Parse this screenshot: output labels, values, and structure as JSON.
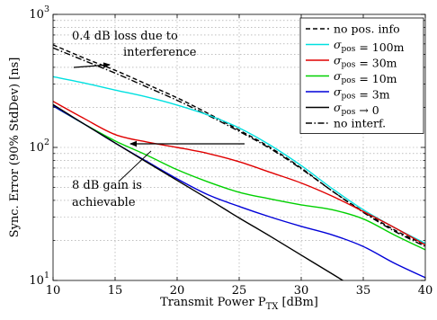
{
  "chart_data": {
    "type": "line",
    "title": "",
    "xlabel": {
      "prefix": "Transmit Power P",
      "sub": "TX",
      "suffix": " [dBm]"
    },
    "ylabel": "Sync. Error (90% StdDev) [ns]",
    "xlim": [
      10,
      40
    ],
    "ylim": [
      10,
      1000
    ],
    "yscale": "log",
    "grid": true,
    "x_ticks": [
      10,
      15,
      20,
      25,
      30,
      35,
      40
    ],
    "y_ticks": [
      {
        "value": 10,
        "base": "10",
        "exp": "1"
      },
      {
        "value": 100,
        "base": "10",
        "exp": "2"
      },
      {
        "value": 1000,
        "base": "10",
        "exp": "3"
      }
    ],
    "legend_position": "top-right",
    "series": [
      {
        "name": "no pos. info",
        "label_parts": [
          {
            "t": "no pos. info"
          }
        ],
        "color": "#000000",
        "dash": "5 3",
        "points": [
          [
            10,
            590
          ],
          [
            12.5,
            470
          ],
          [
            15,
            380
          ],
          [
            17.5,
            300
          ],
          [
            20,
            236
          ],
          [
            22.5,
            180
          ],
          [
            25,
            135
          ],
          [
            27.5,
            100
          ],
          [
            30,
            70
          ],
          [
            32.5,
            47
          ],
          [
            35,
            33
          ],
          [
            37.5,
            24
          ],
          [
            40,
            18.5
          ]
        ]
      },
      {
        "name": "σpos = 100m",
        "label_parts": [
          {
            "t": "σ",
            "style": "italic"
          },
          {
            "t": "pos",
            "sub": true
          },
          {
            "t": " = 100m"
          }
        ],
        "color": "#00e0e0",
        "dash": "",
        "points": [
          [
            10,
            340
          ],
          [
            12.5,
            305
          ],
          [
            15,
            270
          ],
          [
            17.5,
            240
          ],
          [
            20,
            208
          ],
          [
            22.5,
            175
          ],
          [
            25,
            140
          ],
          [
            27.5,
            104
          ],
          [
            30,
            73
          ],
          [
            32.5,
            49
          ],
          [
            35,
            34
          ],
          [
            37.5,
            25
          ],
          [
            40,
            19
          ]
        ]
      },
      {
        "name": "σpos = 30m",
        "label_parts": [
          {
            "t": "σ",
            "style": "italic"
          },
          {
            "t": "pos",
            "sub": true
          },
          {
            "t": " = 30m"
          }
        ],
        "color": "#e00000",
        "dash": "",
        "points": [
          [
            10,
            222
          ],
          [
            12.5,
            165
          ],
          [
            15,
            125
          ],
          [
            17.5,
            110
          ],
          [
            20,
            100
          ],
          [
            22.5,
            90
          ],
          [
            25,
            78
          ],
          [
            27.5,
            65
          ],
          [
            30,
            54
          ],
          [
            32.5,
            43
          ],
          [
            35,
            33
          ],
          [
            37.5,
            25
          ],
          [
            40,
            18.5
          ]
        ]
      },
      {
        "name": "σpos = 10m",
        "label_parts": [
          {
            "t": "σ",
            "style": "italic"
          },
          {
            "t": "pos",
            "sub": true
          },
          {
            "t": " = 10m"
          }
        ],
        "color": "#00d000",
        "dash": "",
        "points": [
          [
            10,
            205
          ],
          [
            12.5,
            150
          ],
          [
            15,
            112
          ],
          [
            17.5,
            88
          ],
          [
            20,
            68
          ],
          [
            22.5,
            55
          ],
          [
            25,
            46
          ],
          [
            27.5,
            41
          ],
          [
            30,
            37
          ],
          [
            32.5,
            34
          ],
          [
            35,
            29
          ],
          [
            37.5,
            22
          ],
          [
            40,
            17
          ]
        ]
      },
      {
        "name": "σpos = 3m",
        "label_parts": [
          {
            "t": "σ",
            "style": "italic"
          },
          {
            "t": "pos",
            "sub": true
          },
          {
            "t": " = 3m"
          }
        ],
        "color": "#0000d8",
        "dash": "",
        "points": [
          [
            10,
            205
          ],
          [
            12.5,
            150
          ],
          [
            15,
            108
          ],
          [
            17.5,
            79
          ],
          [
            20,
            58
          ],
          [
            22.5,
            44
          ],
          [
            25,
            36
          ],
          [
            27.5,
            30
          ],
          [
            30,
            25.5
          ],
          [
            32.5,
            22
          ],
          [
            35,
            18
          ],
          [
            37.5,
            13.5
          ],
          [
            40,
            10.5
          ]
        ]
      },
      {
        "name": "σpos → 0",
        "label_parts": [
          {
            "t": "σ",
            "style": "italic"
          },
          {
            "t": "pos",
            "sub": true
          },
          {
            "t": " → 0"
          }
        ],
        "color": "#000000",
        "dash": "",
        "points": [
          [
            10,
            210
          ],
          [
            12.5,
            150
          ],
          [
            15,
            108
          ],
          [
            17.5,
            78
          ],
          [
            20,
            56.5
          ],
          [
            22.5,
            41
          ],
          [
            25,
            29.5
          ],
          [
            27.5,
            21.5
          ],
          [
            30,
            15.5
          ],
          [
            32.5,
            11.2
          ],
          [
            33.5,
            9.8
          ]
        ]
      },
      {
        "name": "no interf.",
        "label_parts": [
          {
            "t": "no interf."
          }
        ],
        "color": "#000000",
        "dash": "7 2.5 1.5 2.5",
        "points": [
          [
            10,
            560
          ],
          [
            12.5,
            450
          ],
          [
            15,
            362
          ],
          [
            17.5,
            286
          ],
          [
            20,
            226
          ],
          [
            22.5,
            174
          ],
          [
            25,
            132
          ],
          [
            27.5,
            98
          ],
          [
            30,
            69
          ],
          [
            32.5,
            47
          ],
          [
            35,
            32.5
          ],
          [
            37.5,
            23.5
          ],
          [
            40,
            18
          ]
        ]
      }
    ],
    "annotations": [
      {
        "lines": [
          "0.4 dB loss due to",
          "interference"
        ]
      },
      {
        "lines": [
          "8 dB gain is",
          "achievable"
        ]
      }
    ]
  }
}
